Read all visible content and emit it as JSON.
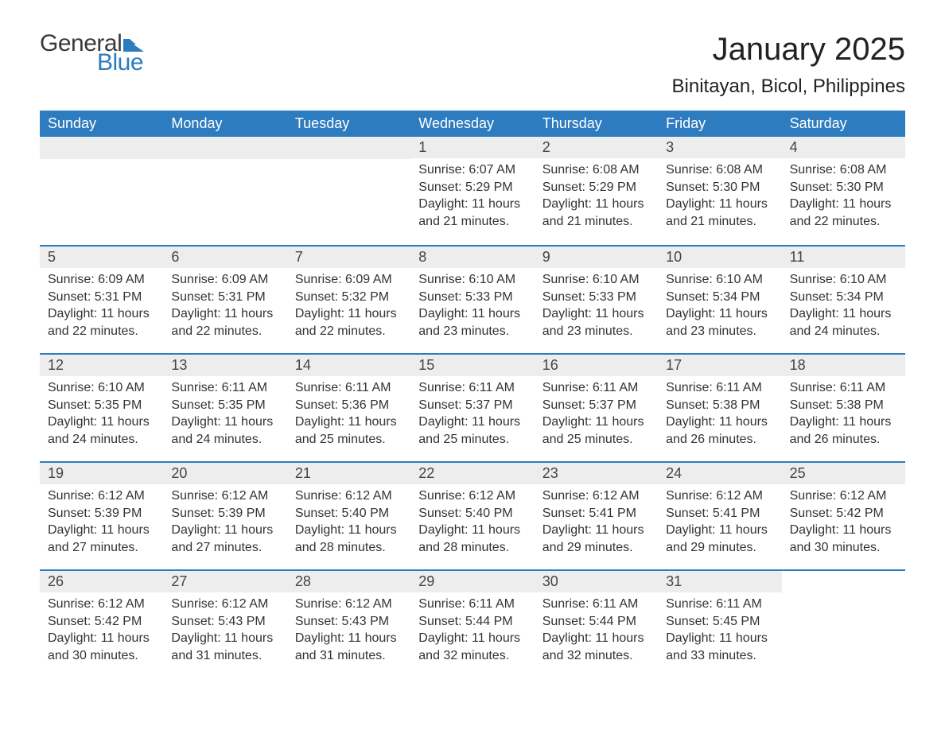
{
  "logo": {
    "text_general": "General",
    "text_blue": "Blue",
    "flag_color": "#2e7cc0"
  },
  "header": {
    "month_title": "January 2025",
    "location": "Binitayan, Bicol, Philippines"
  },
  "styling": {
    "header_bg": "#2e7cc0",
    "header_text": "#ffffff",
    "daynum_bg": "#ededed",
    "border_color": "#2e7cc0",
    "body_text": "#333333",
    "page_bg": "#ffffff",
    "title_fontsize": 40,
    "location_fontsize": 24,
    "weekday_fontsize": 18,
    "cell_fontsize": 16
  },
  "weekdays": [
    "Sunday",
    "Monday",
    "Tuesday",
    "Wednesday",
    "Thursday",
    "Friday",
    "Saturday"
  ],
  "weeks": [
    [
      {
        "day": "",
        "sunrise": "",
        "sunset": "",
        "daylight": ""
      },
      {
        "day": "",
        "sunrise": "",
        "sunset": "",
        "daylight": ""
      },
      {
        "day": "",
        "sunrise": "",
        "sunset": "",
        "daylight": ""
      },
      {
        "day": "1",
        "sunrise": "Sunrise: 6:07 AM",
        "sunset": "Sunset: 5:29 PM",
        "daylight": "Daylight: 11 hours and 21 minutes."
      },
      {
        "day": "2",
        "sunrise": "Sunrise: 6:08 AM",
        "sunset": "Sunset: 5:29 PM",
        "daylight": "Daylight: 11 hours and 21 minutes."
      },
      {
        "day": "3",
        "sunrise": "Sunrise: 6:08 AM",
        "sunset": "Sunset: 5:30 PM",
        "daylight": "Daylight: 11 hours and 21 minutes."
      },
      {
        "day": "4",
        "sunrise": "Sunrise: 6:08 AM",
        "sunset": "Sunset: 5:30 PM",
        "daylight": "Daylight: 11 hours and 22 minutes."
      }
    ],
    [
      {
        "day": "5",
        "sunrise": "Sunrise: 6:09 AM",
        "sunset": "Sunset: 5:31 PM",
        "daylight": "Daylight: 11 hours and 22 minutes."
      },
      {
        "day": "6",
        "sunrise": "Sunrise: 6:09 AM",
        "sunset": "Sunset: 5:31 PM",
        "daylight": "Daylight: 11 hours and 22 minutes."
      },
      {
        "day": "7",
        "sunrise": "Sunrise: 6:09 AM",
        "sunset": "Sunset: 5:32 PM",
        "daylight": "Daylight: 11 hours and 22 minutes."
      },
      {
        "day": "8",
        "sunrise": "Sunrise: 6:10 AM",
        "sunset": "Sunset: 5:33 PM",
        "daylight": "Daylight: 11 hours and 23 minutes."
      },
      {
        "day": "9",
        "sunrise": "Sunrise: 6:10 AM",
        "sunset": "Sunset: 5:33 PM",
        "daylight": "Daylight: 11 hours and 23 minutes."
      },
      {
        "day": "10",
        "sunrise": "Sunrise: 6:10 AM",
        "sunset": "Sunset: 5:34 PM",
        "daylight": "Daylight: 11 hours and 23 minutes."
      },
      {
        "day": "11",
        "sunrise": "Sunrise: 6:10 AM",
        "sunset": "Sunset: 5:34 PM",
        "daylight": "Daylight: 11 hours and 24 minutes."
      }
    ],
    [
      {
        "day": "12",
        "sunrise": "Sunrise: 6:10 AM",
        "sunset": "Sunset: 5:35 PM",
        "daylight": "Daylight: 11 hours and 24 minutes."
      },
      {
        "day": "13",
        "sunrise": "Sunrise: 6:11 AM",
        "sunset": "Sunset: 5:35 PM",
        "daylight": "Daylight: 11 hours and 24 minutes."
      },
      {
        "day": "14",
        "sunrise": "Sunrise: 6:11 AM",
        "sunset": "Sunset: 5:36 PM",
        "daylight": "Daylight: 11 hours and 25 minutes."
      },
      {
        "day": "15",
        "sunrise": "Sunrise: 6:11 AM",
        "sunset": "Sunset: 5:37 PM",
        "daylight": "Daylight: 11 hours and 25 minutes."
      },
      {
        "day": "16",
        "sunrise": "Sunrise: 6:11 AM",
        "sunset": "Sunset: 5:37 PM",
        "daylight": "Daylight: 11 hours and 25 minutes."
      },
      {
        "day": "17",
        "sunrise": "Sunrise: 6:11 AM",
        "sunset": "Sunset: 5:38 PM",
        "daylight": "Daylight: 11 hours and 26 minutes."
      },
      {
        "day": "18",
        "sunrise": "Sunrise: 6:11 AM",
        "sunset": "Sunset: 5:38 PM",
        "daylight": "Daylight: 11 hours and 26 minutes."
      }
    ],
    [
      {
        "day": "19",
        "sunrise": "Sunrise: 6:12 AM",
        "sunset": "Sunset: 5:39 PM",
        "daylight": "Daylight: 11 hours and 27 minutes."
      },
      {
        "day": "20",
        "sunrise": "Sunrise: 6:12 AM",
        "sunset": "Sunset: 5:39 PM",
        "daylight": "Daylight: 11 hours and 27 minutes."
      },
      {
        "day": "21",
        "sunrise": "Sunrise: 6:12 AM",
        "sunset": "Sunset: 5:40 PM",
        "daylight": "Daylight: 11 hours and 28 minutes."
      },
      {
        "day": "22",
        "sunrise": "Sunrise: 6:12 AM",
        "sunset": "Sunset: 5:40 PM",
        "daylight": "Daylight: 11 hours and 28 minutes."
      },
      {
        "day": "23",
        "sunrise": "Sunrise: 6:12 AM",
        "sunset": "Sunset: 5:41 PM",
        "daylight": "Daylight: 11 hours and 29 minutes."
      },
      {
        "day": "24",
        "sunrise": "Sunrise: 6:12 AM",
        "sunset": "Sunset: 5:41 PM",
        "daylight": "Daylight: 11 hours and 29 minutes."
      },
      {
        "day": "25",
        "sunrise": "Sunrise: 6:12 AM",
        "sunset": "Sunset: 5:42 PM",
        "daylight": "Daylight: 11 hours and 30 minutes."
      }
    ],
    [
      {
        "day": "26",
        "sunrise": "Sunrise: 6:12 AM",
        "sunset": "Sunset: 5:42 PM",
        "daylight": "Daylight: 11 hours and 30 minutes."
      },
      {
        "day": "27",
        "sunrise": "Sunrise: 6:12 AM",
        "sunset": "Sunset: 5:43 PM",
        "daylight": "Daylight: 11 hours and 31 minutes."
      },
      {
        "day": "28",
        "sunrise": "Sunrise: 6:12 AM",
        "sunset": "Sunset: 5:43 PM",
        "daylight": "Daylight: 11 hours and 31 minutes."
      },
      {
        "day": "29",
        "sunrise": "Sunrise: 6:11 AM",
        "sunset": "Sunset: 5:44 PM",
        "daylight": "Daylight: 11 hours and 32 minutes."
      },
      {
        "day": "30",
        "sunrise": "Sunrise: 6:11 AM",
        "sunset": "Sunset: 5:44 PM",
        "daylight": "Daylight: 11 hours and 32 minutes."
      },
      {
        "day": "31",
        "sunrise": "Sunrise: 6:11 AM",
        "sunset": "Sunset: 5:45 PM",
        "daylight": "Daylight: 11 hours and 33 minutes."
      },
      {
        "day": "",
        "sunrise": "",
        "sunset": "",
        "daylight": ""
      }
    ]
  ]
}
